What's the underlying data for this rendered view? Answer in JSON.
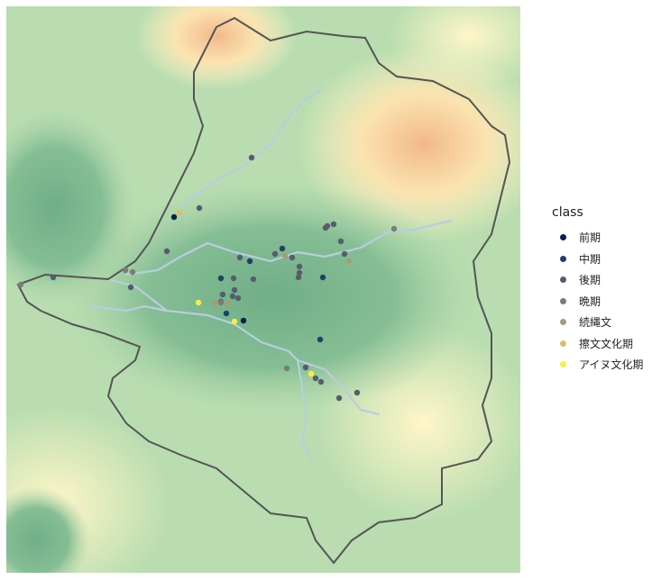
{
  "legend": {
    "title": "class",
    "items": [
      {
        "label": "前期",
        "color": "#00204D"
      },
      {
        "label": "中期",
        "color": "#233E6C"
      },
      {
        "label": "後期",
        "color": "#575C6D"
      },
      {
        "label": "晩期",
        "color": "#7C7B78"
      },
      {
        "label": "続縄文",
        "color": "#A69D75"
      },
      {
        "label": "擦文文化期",
        "color": "#D3C164"
      },
      {
        "label": "アイヌ文化期",
        "color": "#FFEA46"
      }
    ]
  },
  "map": {
    "boundary_color": "#555555",
    "river_color": "#B8CDE0",
    "terrain_colors": [
      "#6FAE86",
      "#A8D3A8",
      "#FFF6C8",
      "#F2B98A"
    ]
  }
}
